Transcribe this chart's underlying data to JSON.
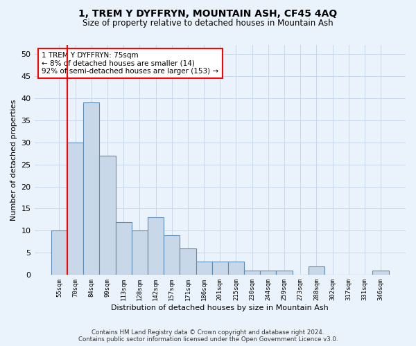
{
  "title": "1, TREM Y DYFFRYN, MOUNTAIN ASH, CF45 4AQ",
  "subtitle": "Size of property relative to detached houses in Mountain Ash",
  "xlabel": "Distribution of detached houses by size in Mountain Ash",
  "ylabel": "Number of detached properties",
  "categories": [
    "55sqm",
    "70sqm",
    "84sqm",
    "99sqm",
    "113sqm",
    "128sqm",
    "142sqm",
    "157sqm",
    "171sqm",
    "186sqm",
    "201sqm",
    "215sqm",
    "230sqm",
    "244sqm",
    "259sqm",
    "273sqm",
    "288sqm",
    "302sqm",
    "317sqm",
    "331sqm",
    "346sqm"
  ],
  "values": [
    10,
    30,
    39,
    27,
    12,
    10,
    13,
    9,
    6,
    3,
    3,
    3,
    1,
    1,
    1,
    0,
    2,
    0,
    0,
    0,
    1
  ],
  "bar_color": "#c8d8e8",
  "bar_edge_color": "#5b8db8",
  "bar_linewidth": 0.8,
  "grid_color": "#c8d8e8",
  "annotation_text_line1": "1 TREM Y DYFFRYN: 75sqm",
  "annotation_text_line2": "← 8% of detached houses are smaller (14)",
  "annotation_text_line3": "92% of semi-detached houses are larger (153) →",
  "annotation_box_color": "white",
  "annotation_box_edge_color": "red",
  "vline_color": "red",
  "vline_x": 0.5,
  "ylim": [
    0,
    52
  ],
  "yticks": [
    0,
    5,
    10,
    15,
    20,
    25,
    30,
    35,
    40,
    45,
    50
  ],
  "footer_line1": "Contains HM Land Registry data © Crown copyright and database right 2024.",
  "footer_line2": "Contains public sector information licensed under the Open Government Licence v3.0.",
  "background_color": "#eaf2fb",
  "axes_background_color": "#eaf2fb"
}
